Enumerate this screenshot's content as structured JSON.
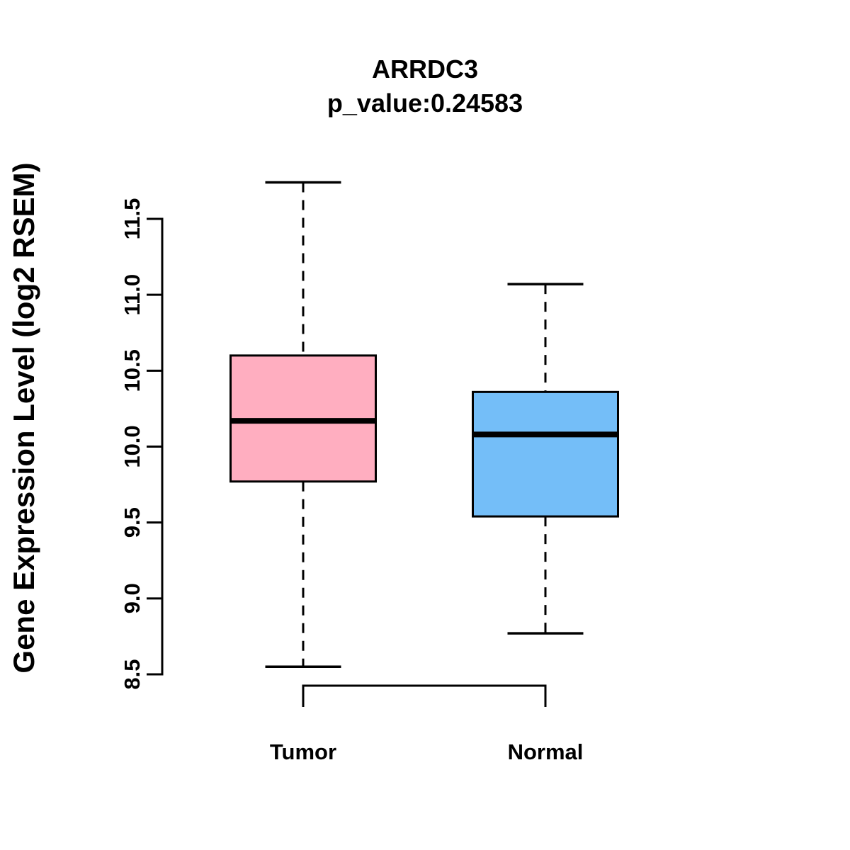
{
  "header": {
    "title": "ARRDC3",
    "subtitle": "p_value:0.24583"
  },
  "chart_data": {
    "type": "boxplot",
    "title": "ARRDC3",
    "subtitle": "p_value:0.24583",
    "ylabel": "Gene Expression Level (log2 RSEM)",
    "xlabel": "",
    "categories": [
      "Tumor",
      "Normal"
    ],
    "series": [
      {
        "name": "Tumor",
        "color": "#ffaec0",
        "whisker_low": 8.55,
        "q1": 9.77,
        "median": 10.17,
        "q3": 10.6,
        "whisker_high": 11.74
      },
      {
        "name": "Normal",
        "color": "#74bef8",
        "whisker_low": 8.77,
        "q1": 9.54,
        "median": 10.08,
        "q3": 10.36,
        "whisker_high": 11.07
      }
    ],
    "ylim": [
      8.5,
      11.5
    ],
    "yticks": [
      8.5,
      9.0,
      9.5,
      10.0,
      10.5,
      11.0,
      11.5
    ],
    "ytick_labels": [
      "8.5",
      "9.0",
      "9.5",
      "10.0",
      "10.5",
      "11.0",
      "11.5"
    ],
    "grid": false,
    "legend": "none",
    "axis_color": "#000000",
    "whisker_style": "dashed",
    "background": "#ffffff"
  }
}
